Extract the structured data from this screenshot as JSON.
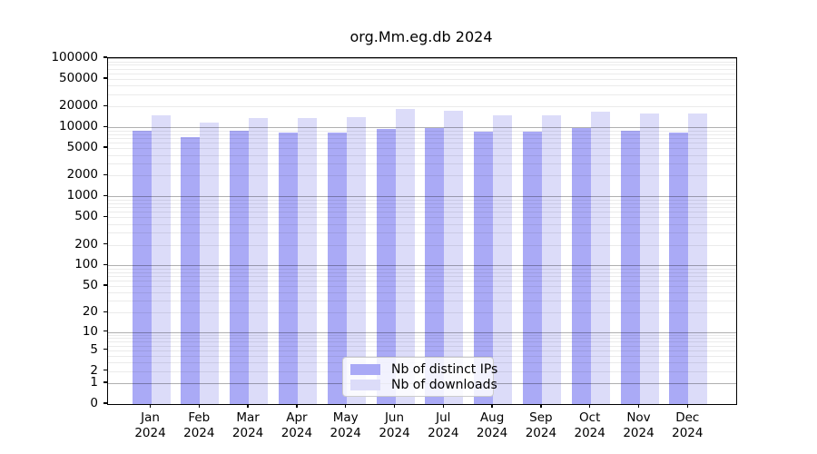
{
  "title": "org.Mm.eg.db 2024",
  "colors": {
    "ips": "#aaaaf6",
    "downloads": "#dcdcf9",
    "major_grid": "#b0b0b0",
    "minor_grid": "#ebebeb",
    "axis": "#000000",
    "legend_border": "#cccccc"
  },
  "legend": {
    "items": [
      {
        "label": "Nb of distinct IPs",
        "series": "ips"
      },
      {
        "label": "Nb of downloads",
        "series": "downloads"
      }
    ]
  },
  "chart_data": {
    "type": "bar",
    "title": "org.Mm.eg.db 2024",
    "categories": [
      "Jan",
      "Feb",
      "Mar",
      "Apr",
      "May",
      "Jun",
      "Jul",
      "Aug",
      "Sep",
      "Oct",
      "Nov",
      "Dec"
    ],
    "year_label": "2024",
    "series": [
      {
        "name": "Nb of distinct IPs",
        "values": [
          8900,
          7200,
          8800,
          8400,
          8400,
          9400,
          9800,
          8600,
          8700,
          9700,
          8900,
          8400
        ]
      },
      {
        "name": "Nb of downloads",
        "values": [
          15000,
          11800,
          13500,
          13500,
          14000,
          18300,
          17400,
          14800,
          15000,
          17000,
          16000,
          15700
        ]
      }
    ],
    "y_scale": "log10(value+1)",
    "ylim": [
      0,
      100000
    ],
    "y_ticks": [
      100000,
      50000,
      20000,
      10000,
      5000,
      2000,
      1000,
      500,
      200,
      100,
      50,
      20,
      10,
      5,
      2,
      1,
      0
    ],
    "grid": true,
    "legend_position": "inside-bottom-center"
  }
}
